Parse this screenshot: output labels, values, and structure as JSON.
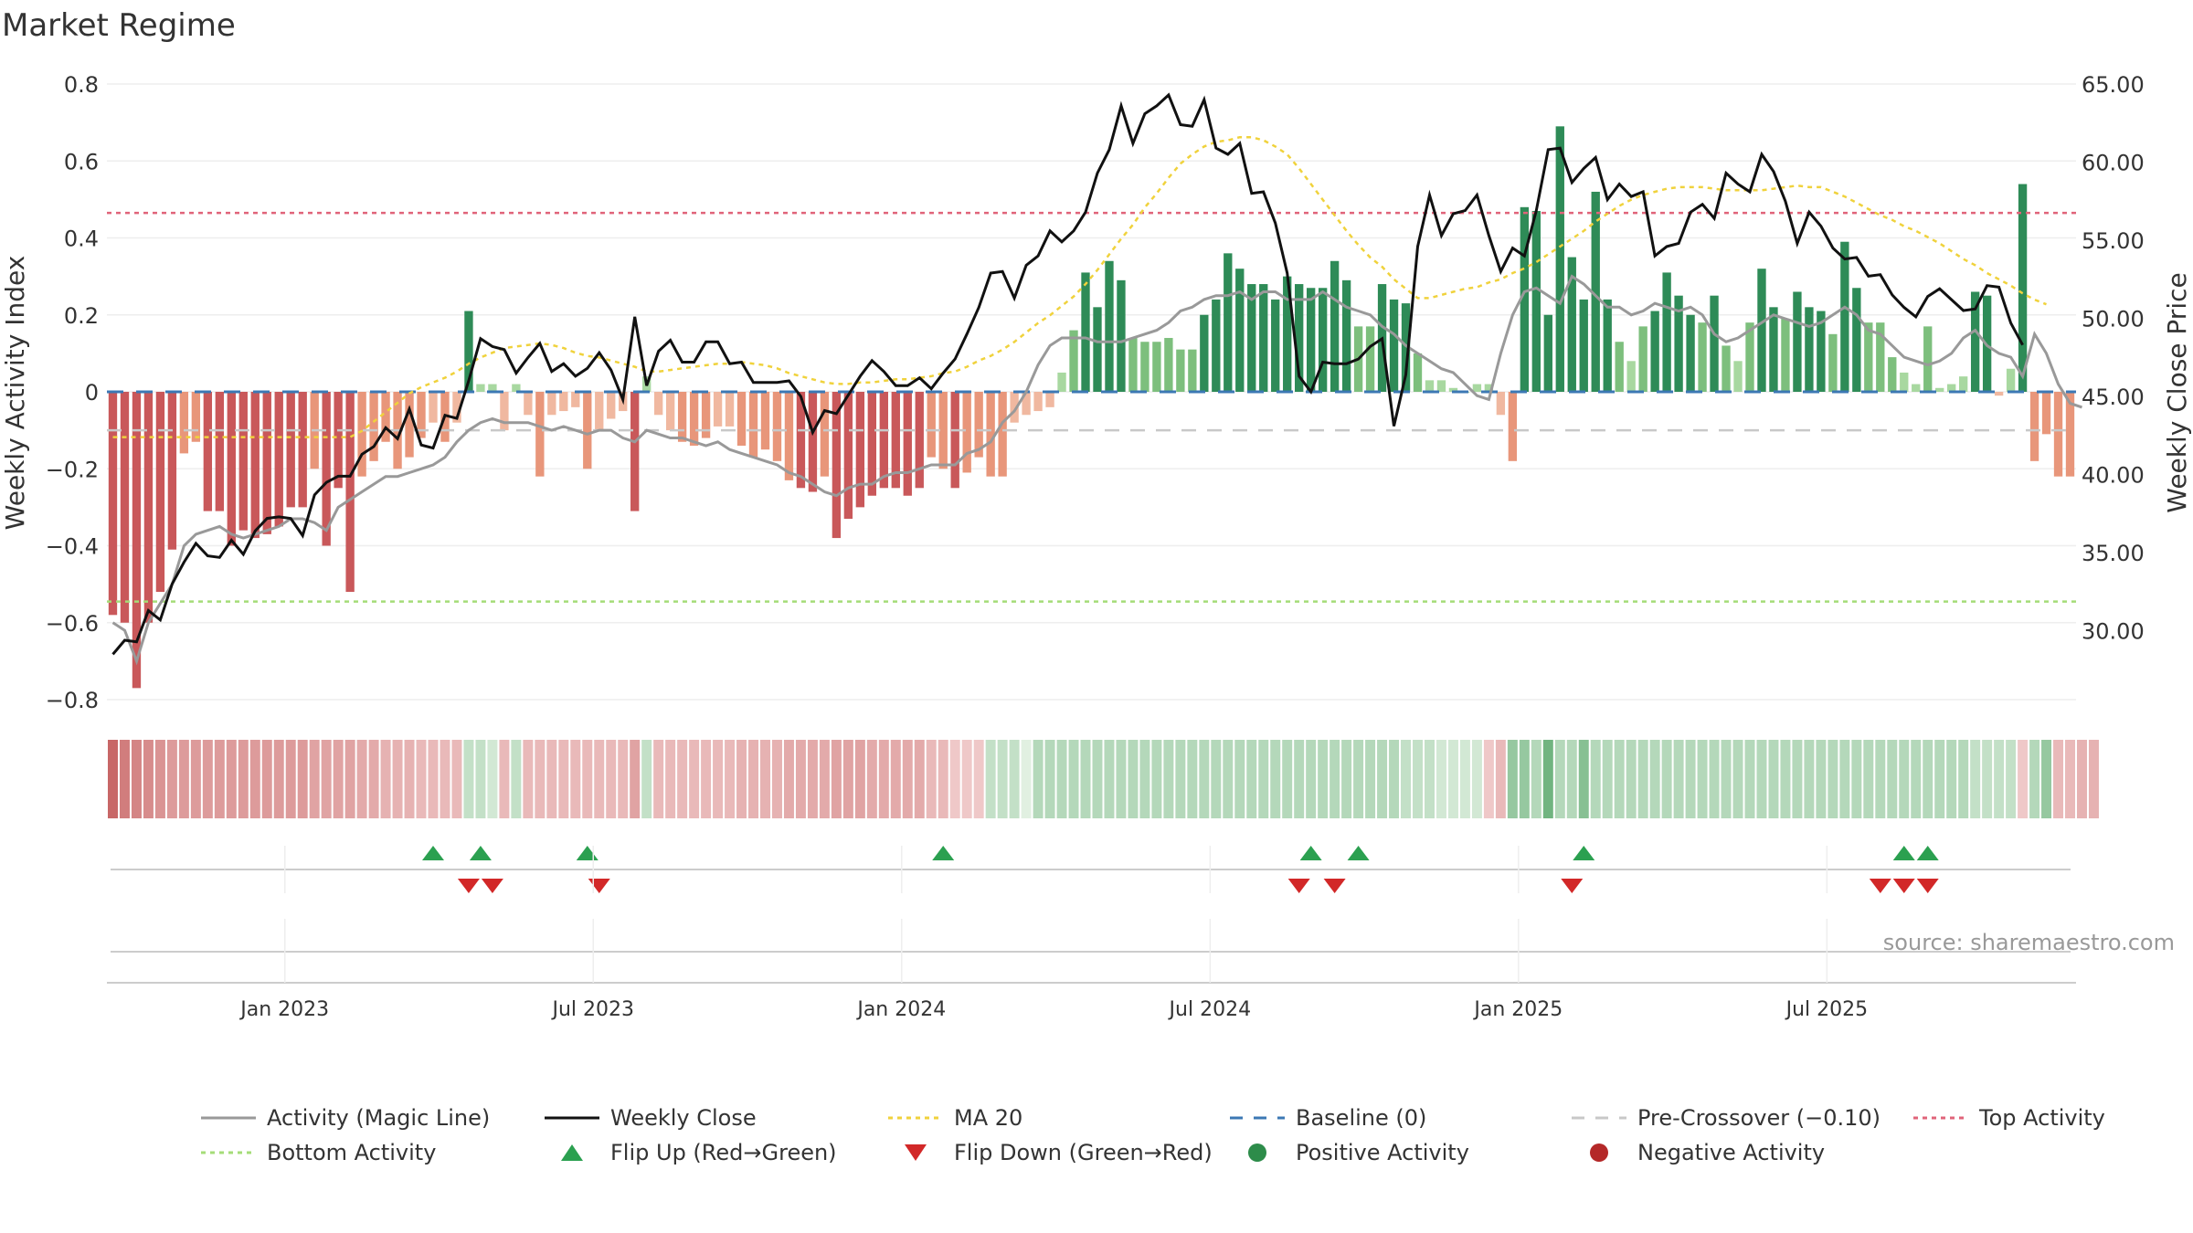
{
  "title": "Market Regime",
  "source": "source: sharemaestro.com",
  "colors": {
    "activity_line": "#999999",
    "close_line": "#111111",
    "ma20": "#f0d23c",
    "baseline": "#3c78b4",
    "pre_crossover": "#c8c8c8",
    "top": "#e0647a",
    "bottom": "#a5dc78",
    "flip_up": "#2ba050",
    "flip_down": "#d22828",
    "positive": "#2d8c4a",
    "negative": "#b42828"
  },
  "chart_data": {
    "type": "bar",
    "title": "Market Regime",
    "ylabel_left": "Weekly Activity Index",
    "ylabel_right": "Weekly Close Price",
    "ylim_left": [
      -0.8,
      0.8
    ],
    "ylim_right": [
      25.6,
      65.0
    ],
    "yticks_left": [
      "0.8",
      "0.6",
      "0.4",
      "0.2",
      "0",
      "−0.2",
      "−0.4",
      "−0.6",
      "−0.8"
    ],
    "yticks_left_values": [
      0.8,
      0.6,
      0.4,
      0.2,
      0,
      -0.2,
      -0.4,
      -0.6,
      -0.8
    ],
    "yticks_right": [
      "65.00",
      "60.00",
      "55.00",
      "50.00",
      "45.00",
      "40.00",
      "35.00",
      "30.00"
    ],
    "yticks_right_values": [
      65,
      60,
      55,
      50,
      45,
      40,
      35,
      30
    ],
    "x_ticks": [
      "Jan 2023",
      "Jul 2023",
      "Jan 2024",
      "Jul 2024",
      "Jan 2025",
      "Jul 2025"
    ],
    "x_tick_weeks": [
      15,
      41,
      67,
      93,
      119,
      145
    ],
    "top_activity": 0.465,
    "bottom_activity": -0.545,
    "pre_crossover": -0.1,
    "baseline": 0,
    "activity": [
      -0.58,
      -0.6,
      -0.77,
      -0.6,
      -0.52,
      -0.41,
      -0.16,
      -0.13,
      -0.31,
      -0.31,
      -0.4,
      -0.36,
      -0.38,
      -0.37,
      -0.35,
      -0.3,
      -0.3,
      -0.2,
      -0.4,
      -0.25,
      -0.52,
      -0.22,
      -0.18,
      -0.13,
      -0.2,
      -0.17,
      -0.12,
      -0.08,
      -0.13,
      -0.08,
      0.21,
      0.02,
      0.02,
      -0.1,
      0.02,
      -0.06,
      -0.22,
      -0.06,
      -0.05,
      -0.04,
      -0.2,
      -0.1,
      -0.07,
      -0.05,
      -0.31,
      0.04,
      -0.06,
      -0.1,
      -0.13,
      -0.14,
      -0.12,
      -0.09,
      -0.09,
      -0.14,
      -0.17,
      -0.15,
      -0.18,
      -0.23,
      -0.25,
      -0.26,
      -0.22,
      -0.38,
      -0.33,
      -0.3,
      -0.27,
      -0.25,
      -0.25,
      -0.27,
      -0.25,
      -0.17,
      -0.2,
      -0.25,
      -0.21,
      -0.17,
      -0.22,
      -0.22,
      -0.08,
      -0.06,
      -0.05,
      -0.04,
      0.05,
      0.16,
      0.31,
      0.22,
      0.34,
      0.29,
      0.14,
      0.13,
      0.13,
      0.14,
      0.11,
      0.11,
      0.2,
      0.24,
      0.36,
      0.32,
      0.28,
      0.28,
      0.24,
      0.3,
      0.28,
      0.27,
      0.27,
      0.34,
      0.29,
      0.17,
      0.17,
      0.28,
      0.24,
      0.23,
      0.1,
      0.03,
      0.03,
      0.01,
      0.0,
      0.02,
      0.02,
      -0.06,
      -0.18,
      0.48,
      0.47,
      0.2,
      0.69,
      0.35,
      0.24,
      0.52,
      0.24,
      0.13,
      0.08,
      0.17,
      0.21,
      0.31,
      0.25,
      0.2,
      0.18,
      0.25,
      0.12,
      0.08,
      0.18,
      0.32,
      0.22,
      0.19,
      0.26,
      0.22,
      0.21,
      0.15,
      0.39,
      0.27,
      0.18,
      0.18,
      0.09,
      0.05,
      0.02,
      0.17,
      0.01,
      0.02,
      0.04,
      0.26,
      0.25,
      -0.01,
      0.06,
      0.54,
      -0.18,
      -0.11,
      -0.22,
      -0.22
    ],
    "activity_line": [
      -0.6,
      -0.62,
      -0.7,
      -0.6,
      -0.55,
      -0.5,
      -0.4,
      -0.37,
      -0.36,
      -0.35,
      -0.37,
      -0.38,
      -0.37,
      -0.36,
      -0.35,
      -0.33,
      -0.33,
      -0.34,
      -0.36,
      -0.3,
      -0.28,
      -0.26,
      -0.24,
      -0.22,
      -0.22,
      -0.21,
      -0.2,
      -0.19,
      -0.17,
      -0.13,
      -0.1,
      -0.08,
      -0.07,
      -0.08,
      -0.08,
      -0.08,
      -0.09,
      -0.1,
      -0.09,
      -0.1,
      -0.11,
      -0.1,
      -0.1,
      -0.12,
      -0.13,
      -0.1,
      -0.11,
      -0.12,
      -0.12,
      -0.13,
      -0.14,
      -0.13,
      -0.15,
      -0.16,
      -0.17,
      -0.18,
      -0.19,
      -0.21,
      -0.22,
      -0.24,
      -0.26,
      -0.27,
      -0.25,
      -0.24,
      -0.24,
      -0.22,
      -0.21,
      -0.21,
      -0.2,
      -0.19,
      -0.19,
      -0.19,
      -0.16,
      -0.15,
      -0.13,
      -0.08,
      -0.05,
      0.0,
      0.07,
      0.12,
      0.14,
      0.14,
      0.14,
      0.13,
      0.13,
      0.13,
      0.14,
      0.15,
      0.16,
      0.18,
      0.21,
      0.22,
      0.24,
      0.25,
      0.25,
      0.26,
      0.24,
      0.26,
      0.26,
      0.24,
      0.24,
      0.24,
      0.26,
      0.24,
      0.22,
      0.21,
      0.2,
      0.17,
      0.15,
      0.12,
      0.1,
      0.08,
      0.06,
      0.05,
      0.02,
      -0.01,
      -0.02,
      0.1,
      0.2,
      0.26,
      0.27,
      0.25,
      0.23,
      0.3,
      0.28,
      0.25,
      0.22,
      0.22,
      0.2,
      0.21,
      0.23,
      0.22,
      0.21,
      0.22,
      0.2,
      0.15,
      0.13,
      0.14,
      0.16,
      0.18,
      0.2,
      0.19,
      0.18,
      0.17,
      0.18,
      0.2,
      0.22,
      0.2,
      0.16,
      0.15,
      0.12,
      0.09,
      0.08,
      0.07,
      0.08,
      0.1,
      0.14,
      0.16,
      0.12,
      0.1,
      0.09,
      0.04,
      0.15,
      0.1,
      0.02,
      -0.03,
      -0.04
    ],
    "weekly_close": [
      28.5,
      29.4,
      29.3,
      31.3,
      30.7,
      33.0,
      34.4,
      35.6,
      34.8,
      34.7,
      35.8,
      34.9,
      36.4,
      37.2,
      37.3,
      37.2,
      36.1,
      38.7,
      39.5,
      39.9,
      39.9,
      41.3,
      41.8,
      43.0,
      42.3,
      44.2,
      41.9,
      41.7,
      43.8,
      43.6,
      46.0,
      48.7,
      48.2,
      48.0,
      46.5,
      47.5,
      48.4,
      46.6,
      47.1,
      46.3,
      46.8,
      47.8,
      46.7,
      44.8,
      50.1,
      45.7,
      47.9,
      48.6,
      47.2,
      47.2,
      48.5,
      48.5,
      47.1,
      47.2,
      45.9,
      45.9,
      45.9,
      46.0,
      45.0,
      42.7,
      44.1,
      43.9,
      45.1,
      46.3,
      47.3,
      46.6,
      45.7,
      45.7,
      46.2,
      45.5,
      46.5,
      47.4,
      49.0,
      50.7,
      52.9,
      53.0,
      51.3,
      53.4,
      54.0,
      55.6,
      54.9,
      55.6,
      56.8,
      59.3,
      60.8,
      63.6,
      61.2,
      63.1,
      63.6,
      64.3,
      62.4,
      62.3,
      64.0,
      60.9,
      60.5,
      61.2,
      58.0,
      58.1,
      56.1,
      52.9,
      46.3,
      45.3,
      47.2,
      47.1,
      47.1,
      47.4,
      48.2,
      48.7,
      43.1,
      46.4,
      54.6,
      57.9,
      55.3,
      56.7,
      56.9,
      57.9,
      55.3,
      53.0,
      54.5,
      54.0,
      56.9,
      60.8,
      60.9,
      58.7,
      59.6,
      60.3,
      57.6,
      58.6,
      57.8,
      58.1,
      54.0,
      54.6,
      54.8,
      56.8,
      57.3,
      56.4,
      59.3,
      58.6,
      58.1,
      60.5,
      59.4,
      57.5,
      54.8,
      56.8,
      55.9,
      54.5,
      53.8,
      53.9,
      52.7,
      52.8,
      51.5,
      50.7,
      50.1,
      51.4,
      51.9,
      51.2,
      50.5,
      50.6,
      52.1,
      52.0,
      49.7,
      48.3
    ],
    "ma20": [
      42.4,
      42.4,
      42.4,
      42.4,
      42.4,
      42.4,
      42.4,
      42.4,
      42.4,
      42.4,
      42.4,
      42.4,
      42.4,
      42.4,
      42.4,
      42.4,
      42.4,
      42.4,
      42.4,
      42.4,
      42.4,
      42.8,
      43.4,
      44.0,
      44.6,
      45.2,
      45.6,
      45.9,
      46.2,
      46.6,
      47.1,
      47.5,
      47.8,
      48.1,
      48.2,
      48.3,
      48.4,
      48.3,
      48.1,
      47.8,
      47.6,
      47.5,
      47.3,
      47.1,
      46.9,
      46.6,
      46.6,
      46.7,
      46.8,
      46.9,
      47.0,
      47.1,
      47.1,
      47.2,
      47.1,
      47.0,
      46.8,
      46.5,
      46.3,
      46.1,
      45.9,
      45.8,
      45.8,
      45.9,
      45.9,
      46.0,
      46.1,
      46.1,
      46.2,
      46.3,
      46.5,
      46.6,
      46.9,
      47.3,
      47.6,
      48.0,
      48.5,
      49.1,
      49.7,
      50.2,
      50.8,
      51.4,
      52.2,
      53.1,
      54.1,
      55.1,
      56.0,
      57.1,
      58.0,
      59.0,
      59.9,
      60.5,
      61.0,
      61.3,
      61.4,
      61.6,
      61.6,
      61.4,
      61.0,
      60.5,
      59.6,
      58.6,
      57.6,
      56.6,
      55.6,
      54.7,
      53.9,
      53.3,
      52.5,
      51.9,
      51.3,
      51.3,
      51.5,
      51.7,
      51.9,
      52.0,
      52.3,
      52.5,
      52.9,
      53.2,
      53.6,
      54.1,
      54.6,
      55.1,
      55.6,
      56.2,
      56.7,
      57.2,
      57.6,
      57.9,
      58.1,
      58.3,
      58.4,
      58.4,
      58.4,
      58.3,
      58.2,
      58.2,
      58.2,
      58.2,
      58.3,
      58.4,
      58.5,
      58.4,
      58.4,
      58.1,
      57.8,
      57.4,
      57.0,
      56.6,
      56.3,
      55.9,
      55.6,
      55.2,
      54.8,
      54.3,
      53.8,
      53.4,
      52.9,
      52.5,
      52.1,
      51.6,
      51.2,
      50.9
    ]
  },
  "strip_shades": [
    -0.75,
    -0.6,
    -0.55,
    -0.5,
    -0.45,
    -0.4,
    -0.4,
    -0.4,
    -0.4,
    -0.4,
    -0.4,
    -0.4,
    -0.4,
    -0.4,
    -0.4,
    -0.4,
    -0.4,
    -0.35,
    -0.35,
    -0.35,
    -0.35,
    -0.3,
    -0.3,
    -0.25,
    -0.25,
    -0.25,
    -0.2,
    -0.2,
    -0.2,
    -0.2,
    0.2,
    0.2,
    0.1,
    -0.2,
    0.2,
    -0.2,
    -0.2,
    -0.2,
    -0.2,
    -0.2,
    -0.2,
    -0.2,
    -0.2,
    -0.2,
    -0.35,
    0.2,
    -0.2,
    -0.2,
    -0.2,
    -0.2,
    -0.2,
    -0.2,
    -0.2,
    -0.25,
    -0.25,
    -0.25,
    -0.25,
    -0.3,
    -0.3,
    -0.3,
    -0.3,
    -0.35,
    -0.35,
    -0.35,
    -0.3,
    -0.3,
    -0.3,
    -0.3,
    -0.3,
    -0.2,
    -0.2,
    -0.1,
    -0.1,
    -0.1,
    0.2,
    0.2,
    0.2,
    0.0,
    0.3,
    0.3,
    0.3,
    0.3,
    0.3,
    0.3,
    0.3,
    0.3,
    0.3,
    0.3,
    0.3,
    0.3,
    0.3,
    0.3,
    0.3,
    0.3,
    0.3,
    0.3,
    0.3,
    0.3,
    0.3,
    0.3,
    0.3,
    0.3,
    0.3,
    0.3,
    0.3,
    0.3,
    0.3,
    0.3,
    0.3,
    0.2,
    0.2,
    0.2,
    0.1,
    0.1,
    0.1,
    0.1,
    -0.1,
    -0.2,
    0.5,
    0.5,
    0.3,
    0.75,
    0.3,
    0.3,
    0.6,
    0.3,
    0.3,
    0.3,
    0.3,
    0.3,
    0.3,
    0.3,
    0.3,
    0.3,
    0.3,
    0.3,
    0.3,
    0.3,
    0.3,
    0.3,
    0.3,
    0.3,
    0.3,
    0.3,
    0.3,
    0.3,
    0.3,
    0.3,
    0.3,
    0.3,
    0.3,
    0.3,
    0.3,
    0.3,
    0.3,
    0.3,
    0.3,
    0.2,
    0.2,
    0.2,
    0.2,
    -0.1,
    0.3,
    0.5,
    -0.2,
    -0.2,
    -0.25,
    -0.25
  ],
  "flip_up_weeks": [
    27,
    31,
    40,
    70,
    101,
    105,
    124,
    151,
    153
  ],
  "flip_down_weeks": [
    30,
    32,
    41,
    100,
    103,
    123,
    149,
    151,
    153
  ],
  "legend": [
    "Activity (Magic Line)",
    "Weekly Close",
    "MA 20",
    "Baseline (0)",
    "Pre-Crossover (−0.10)",
    "Top Activity",
    "Bottom Activity",
    "Flip Up (Red→Green)",
    "Flip Down (Green→Red)",
    "Positive Activity",
    "Negative Activity"
  ]
}
